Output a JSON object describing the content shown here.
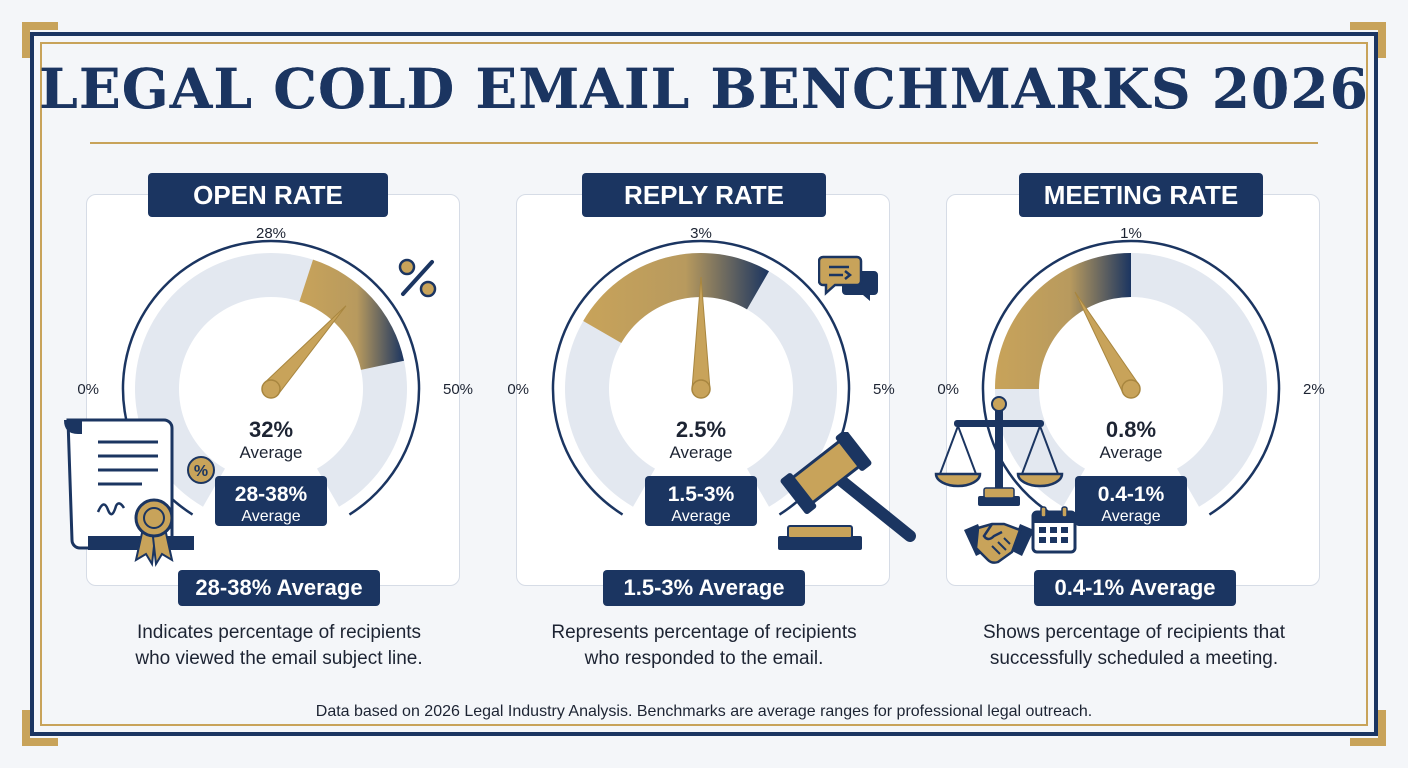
{
  "title": "LEGAL COLD EMAIL BENCHMARKS 2026",
  "footer": "Data based on 2026 Legal Industry Analysis. Benchmarks are average ranges for professional legal outreach.",
  "colors": {
    "navy": "#1b3561",
    "gold": "#c8a35a",
    "track": "#e3e8f0"
  },
  "icons": [
    "percent-icon",
    "certificate-icon",
    "chat-icon",
    "gavel-icon",
    "scales-icon",
    "handshake-icon",
    "calendar-icon"
  ],
  "chart_data": [
    {
      "type": "gauge",
      "title": "OPEN RATE",
      "min": 0,
      "max": 50,
      "unit": "%",
      "min_label": "0%",
      "max_label": "50%",
      "top_label": "28%",
      "value": 32,
      "value_label": "32%",
      "value_caption": "Average",
      "range": [
        28,
        38
      ],
      "range_label": "28-38%",
      "range_caption": "Average",
      "summary": "28-38% Average",
      "description": [
        "Indicates percentage of recipients",
        "who viewed the email subject line."
      ]
    },
    {
      "type": "gauge",
      "title": "REPLY RATE",
      "min": 0,
      "max": 5,
      "unit": "%",
      "min_label": "0%",
      "max_label": "5%",
      "top_label": "3%",
      "value": 2.5,
      "value_label": "2.5%",
      "value_caption": "Average",
      "range": [
        1.5,
        3
      ],
      "range_label": "1.5-3%",
      "range_caption": "Average",
      "summary": "1.5-3% Average",
      "description": [
        "Represents percentage of recipients",
        "who responded to the email."
      ]
    },
    {
      "type": "gauge",
      "title": "MEETING RATE",
      "min": 0,
      "max": 2,
      "unit": "%",
      "min_label": "0%",
      "max_label": "2%",
      "top_label": "1%",
      "value": 0.8,
      "value_label": "0.8%",
      "value_caption": "Average",
      "range": [
        0.4,
        1
      ],
      "range_label": "0.4-1%",
      "range_caption": "Average",
      "summary": "0.4-1% Average",
      "description": [
        "Shows percentage of recipients that",
        "successfully scheduled a meeting."
      ]
    }
  ]
}
